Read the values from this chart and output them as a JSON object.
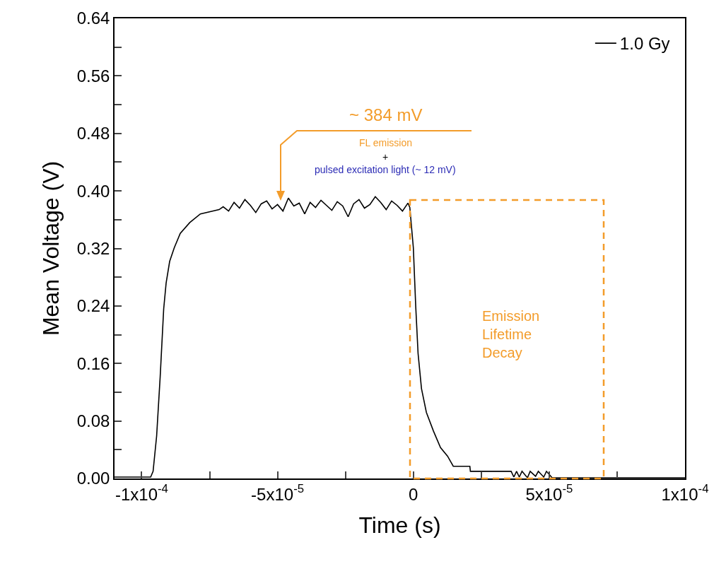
{
  "chart_data": {
    "type": "line",
    "xlabel": "Time (s)",
    "ylabel": "Mean Voltage (V)",
    "xlim": [
      -0.00011,
      0.0001
    ],
    "xticks": [
      {
        "value": -0.0001,
        "label": "-1x10$^{-4}$"
      },
      {
        "value": -7.5e-05,
        "label": null
      },
      {
        "value": -5e-05,
        "label": "-5x10$^{-5}$"
      },
      {
        "value": -2.5e-05,
        "label": null
      },
      0,
      {
        "value": 2.5e-05,
        "label": null
      },
      {
        "value": 5e-05,
        "label": "5x10$^{-5}$"
      },
      {
        "value": 7.5e-05,
        "label": null
      },
      {
        "value": 0.0001,
        "label": "1x10$^{-4}$"
      }
    ],
    "ylim": [
      0,
      0.64
    ],
    "yticks": [
      {
        "value": 0,
        "label": "0.00"
      },
      {
        "value": 0.04,
        "label": null
      },
      0.08,
      {
        "value": 0.12,
        "label": null
      },
      0.16,
      {
        "value": 0.2,
        "label": null
      },
      0.24,
      {
        "value": 0.28,
        "label": null
      },
      0.32,
      {
        "value": 0.36,
        "label": null
      },
      {
        "value": 0.4,
        "label": "0.40"
      },
      {
        "value": 0.44,
        "label": null
      },
      0.48,
      {
        "value": 0.52,
        "label": null
      },
      0.56,
      {
        "value": 0.6,
        "label": null
      },
      0.64
    ],
    "grid": false,
    "legend": "top right",
    "marker": "none",
    "line_style": "solid",
    "series": [
      {
        "name": "1.0 Gy",
        "color": "#000000",
        "x": [
          -0.00011,
          -9.67e-05,
          -9.58e-05,
          -9.45e-05,
          -9.32e-05,
          -9.19e-05,
          -9.1e-05,
          -8.97e-05,
          -8.8e-05,
          -8.58e-05,
          -8.23e-05,
          -7.84e-05,
          -7.15e-05,
          -7e-05,
          -6.8e-05,
          -6.6e-05,
          -6.4e-05,
          -6.2e-05,
          -6e-05,
          -5.8e-05,
          -5.6e-05,
          -5.4e-05,
          -5.2e-05,
          -5e-05,
          -4.8e-05,
          -4.6e-05,
          -4.4e-05,
          -4.2e-05,
          -4e-05,
          -3.8e-05,
          -3.6e-05,
          -3.4e-05,
          -3.2e-05,
          -3e-05,
          -2.8e-05,
          -2.6e-05,
          -2.4e-05,
          -2.2e-05,
          -2e-05,
          -1.8e-05,
          -1.6e-05,
          -1.4e-05,
          -1.2e-05,
          -1e-05,
          -8e-06,
          -6e-06,
          -4e-06,
          -2e-06,
          -1.3e-06,
          0,
          8.7e-07,
          1.74e-06,
          3e-06,
          4.8e-06,
          7.4e-06,
          1e-05,
          1.26e-05,
          1.47e-05,
          2.08e-05,
          2.1e-05,
          3.51e-05,
          3.6e-05,
          3.7e-05,
          3.8e-05,
          3.9e-05,
          4e-05,
          4.2e-05,
          4.3e-05,
          4.5e-05,
          4.6e-05,
          4.8e-05,
          4.9e-05,
          5.11e-05,
          0.0001
        ],
        "values": [
          0.002,
          0.002,
          0.01,
          0.059,
          0.141,
          0.236,
          0.272,
          0.302,
          0.321,
          0.341,
          0.356,
          0.368,
          0.374,
          0.378,
          0.372,
          0.384,
          0.376,
          0.388,
          0.38,
          0.37,
          0.382,
          0.386,
          0.375,
          0.381,
          0.372,
          0.39,
          0.379,
          0.383,
          0.368,
          0.384,
          0.377,
          0.387,
          0.38,
          0.373,
          0.385,
          0.379,
          0.364,
          0.382,
          0.388,
          0.376,
          0.381,
          0.392,
          0.384,
          0.374,
          0.386,
          0.38,
          0.372,
          0.383,
          0.377,
          0.321,
          0.24,
          0.174,
          0.125,
          0.092,
          0.066,
          0.043,
          0.031,
          0.017,
          0.017,
          0.01,
          0.01,
          0.01,
          0.002,
          0.01,
          0.002,
          0.01,
          0.001,
          0.01,
          0.003,
          0.01,
          0.002,
          0.01,
          0.001,
          0.001
        ]
      }
    ],
    "annotations": [
      "~ 384 mV",
      "FL emission",
      "+",
      "pulsed excitation light (~ 12 mV)",
      "Emission\nLifetime\nDecay"
    ]
  }
}
